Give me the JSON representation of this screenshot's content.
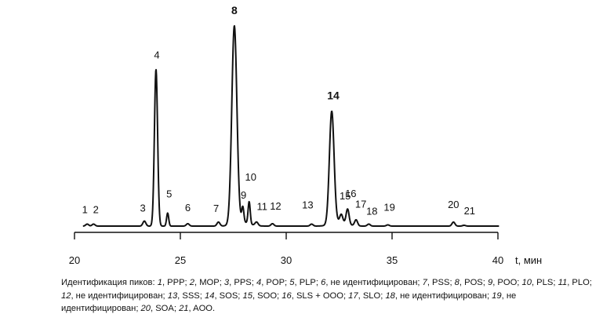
{
  "chart_data": {
    "type": "line",
    "xlabel": "t, мин",
    "xlim": [
      20,
      40
    ],
    "x_ticks": [
      20,
      25,
      30,
      35,
      40
    ],
    "grid": false,
    "legend": "none",
    "peaks": [
      {
        "id": "1",
        "t": 20.6,
        "height": 0.01
      },
      {
        "id": "2",
        "t": 20.9,
        "height": 0.01
      },
      {
        "id": "3",
        "t": 23.3,
        "height": 0.025
      },
      {
        "id": "4",
        "t": 23.85,
        "height": 0.78
      },
      {
        "id": "5",
        "t": 24.4,
        "height": 0.065
      },
      {
        "id": "6",
        "t": 25.35,
        "height": 0.012
      },
      {
        "id": "7",
        "t": 26.8,
        "height": 0.02
      },
      {
        "id": "8",
        "t": 27.55,
        "height": 0.985
      },
      {
        "id": "9",
        "t": 27.95,
        "height": 0.075
      },
      {
        "id": "10",
        "t": 28.25,
        "height": 0.11
      },
      {
        "id": "11",
        "t": 28.6,
        "height": 0.018
      },
      {
        "id": "12",
        "t": 29.35,
        "height": 0.012
      },
      {
        "id": "13",
        "t": 31.2,
        "height": 0.01
      },
      {
        "id": "14",
        "t": 32.15,
        "height": 0.56
      },
      {
        "id": "15",
        "t": 32.6,
        "height": 0.04
      },
      {
        "id": "16",
        "t": 32.9,
        "height": 0.075
      },
      {
        "id": "17",
        "t": 33.3,
        "height": 0.03
      },
      {
        "id": "18",
        "t": 33.9,
        "height": 0.01
      },
      {
        "id": "19",
        "t": 34.8,
        "height": 0.006
      },
      {
        "id": "20",
        "t": 37.9,
        "height": 0.02
      },
      {
        "id": "21",
        "t": 38.4,
        "height": 0.004
      }
    ]
  },
  "caption": {
    "intro": "Идентификация пиков: ",
    "items": [
      {
        "n": "1",
        "text": "PPP"
      },
      {
        "n": "2",
        "text": "MOP"
      },
      {
        "n": "3",
        "text": "PPS"
      },
      {
        "n": "4",
        "text": "POP"
      },
      {
        "n": "5",
        "text": "PLP"
      },
      {
        "n": "6",
        "text": "не идентифицирован"
      },
      {
        "n": "7",
        "text": "PSS"
      },
      {
        "n": "8",
        "text": "POS"
      },
      {
        "n": "9",
        "text": "POO"
      },
      {
        "n": "10",
        "text": "PLS"
      },
      {
        "n": "11",
        "text": "PLO"
      },
      {
        "n": "12",
        "text": "не идентифицирован"
      },
      {
        "n": "13",
        "text": "SSS"
      },
      {
        "n": "14",
        "text": "SOS"
      },
      {
        "n": "15",
        "text": "SOO"
      },
      {
        "n": "16",
        "text": "SLS + OOO"
      },
      {
        "n": "17",
        "text": "SLO"
      },
      {
        "n": "18",
        "text": "не идентифицирован"
      },
      {
        "n": "19",
        "text": "не идентифицирован"
      },
      {
        "n": "20",
        "text": "SOA"
      },
      {
        "n": "21",
        "text": "AOO"
      }
    ]
  }
}
